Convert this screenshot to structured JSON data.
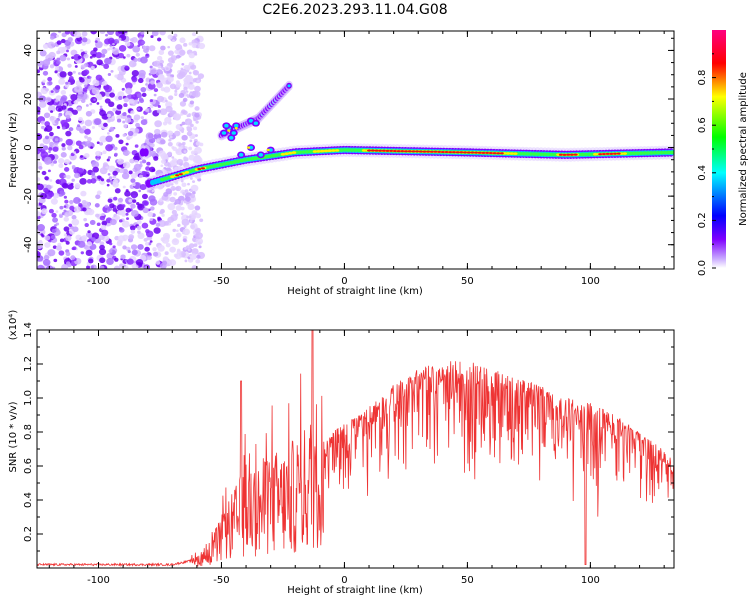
{
  "title": "C2E6.2023.293.11.04.G08",
  "chart_data": [
    {
      "type": "heatmap",
      "xlabel": "Height of straight line (km)",
      "ylabel": "Frequency (Hz)",
      "xlim": [
        -125,
        134
      ],
      "ylim": [
        -50,
        48
      ],
      "x_ticks": [
        -100,
        -50,
        0,
        50,
        100
      ],
      "y_ticks": [
        -40,
        -20,
        0,
        20,
        40
      ],
      "colorbar": {
        "label": "Normalized spectral amplitude",
        "range": [
          0,
          1
        ],
        "ticks": [
          "0.0",
          "0.2",
          "0.4",
          "0.6",
          "0.8"
        ],
        "colors": [
          "#ffffff",
          "#7f00ff",
          "#0000ff",
          "#00ffff",
          "#00ff00",
          "#ffff00",
          "#ff0000",
          "#ff0080"
        ]
      },
      "features": {
        "noise_region_x": [
          -125,
          -62
        ],
        "main_line": [
          [
            -80,
            -15
          ],
          [
            -70,
            -12
          ],
          [
            -60,
            -9
          ],
          [
            -40,
            -5
          ],
          [
            -20,
            -2
          ],
          [
            0,
            -1
          ],
          [
            50,
            -2
          ],
          [
            90,
            -3
          ],
          [
            134,
            -2
          ]
        ],
        "harmonic_branch": [
          [
            -50,
            5
          ],
          [
            -35,
            12
          ],
          [
            -22,
            26
          ]
        ]
      }
    },
    {
      "type": "line",
      "xlabel": "Height of straight line (km)",
      "ylabel": "SNR (10 * v/v)",
      "y_multiplier": "(x10⁴)",
      "xlim": [
        -125,
        134
      ],
      "ylim": [
        0,
        1.4
      ],
      "x_ticks": [
        -100,
        -50,
        0,
        50,
        100
      ],
      "y_ticks": [
        "0.2",
        "0.4",
        "0.6",
        "0.8",
        "1.0",
        "1.2",
        "1.4"
      ],
      "color": "#ee3333",
      "envelope": {
        "x": [
          -125,
          -70,
          -60,
          -55,
          -50,
          -45,
          -40,
          -35,
          -30,
          -25,
          -20,
          -15,
          -10,
          -5,
          0,
          10,
          20,
          30,
          40,
          50,
          60,
          70,
          80,
          90,
          100,
          110,
          120,
          130,
          134
        ],
        "y": [
          0.02,
          0.02,
          0.05,
          0.1,
          0.2,
          0.3,
          0.4,
          0.4,
          0.45,
          0.45,
          0.5,
          0.55,
          0.7,
          0.8,
          0.85,
          0.95,
          1.08,
          1.17,
          1.22,
          1.22,
          1.17,
          1.12,
          1.07,
          1.0,
          0.97,
          0.9,
          0.8,
          0.7,
          0.62
        ]
      }
    }
  ]
}
